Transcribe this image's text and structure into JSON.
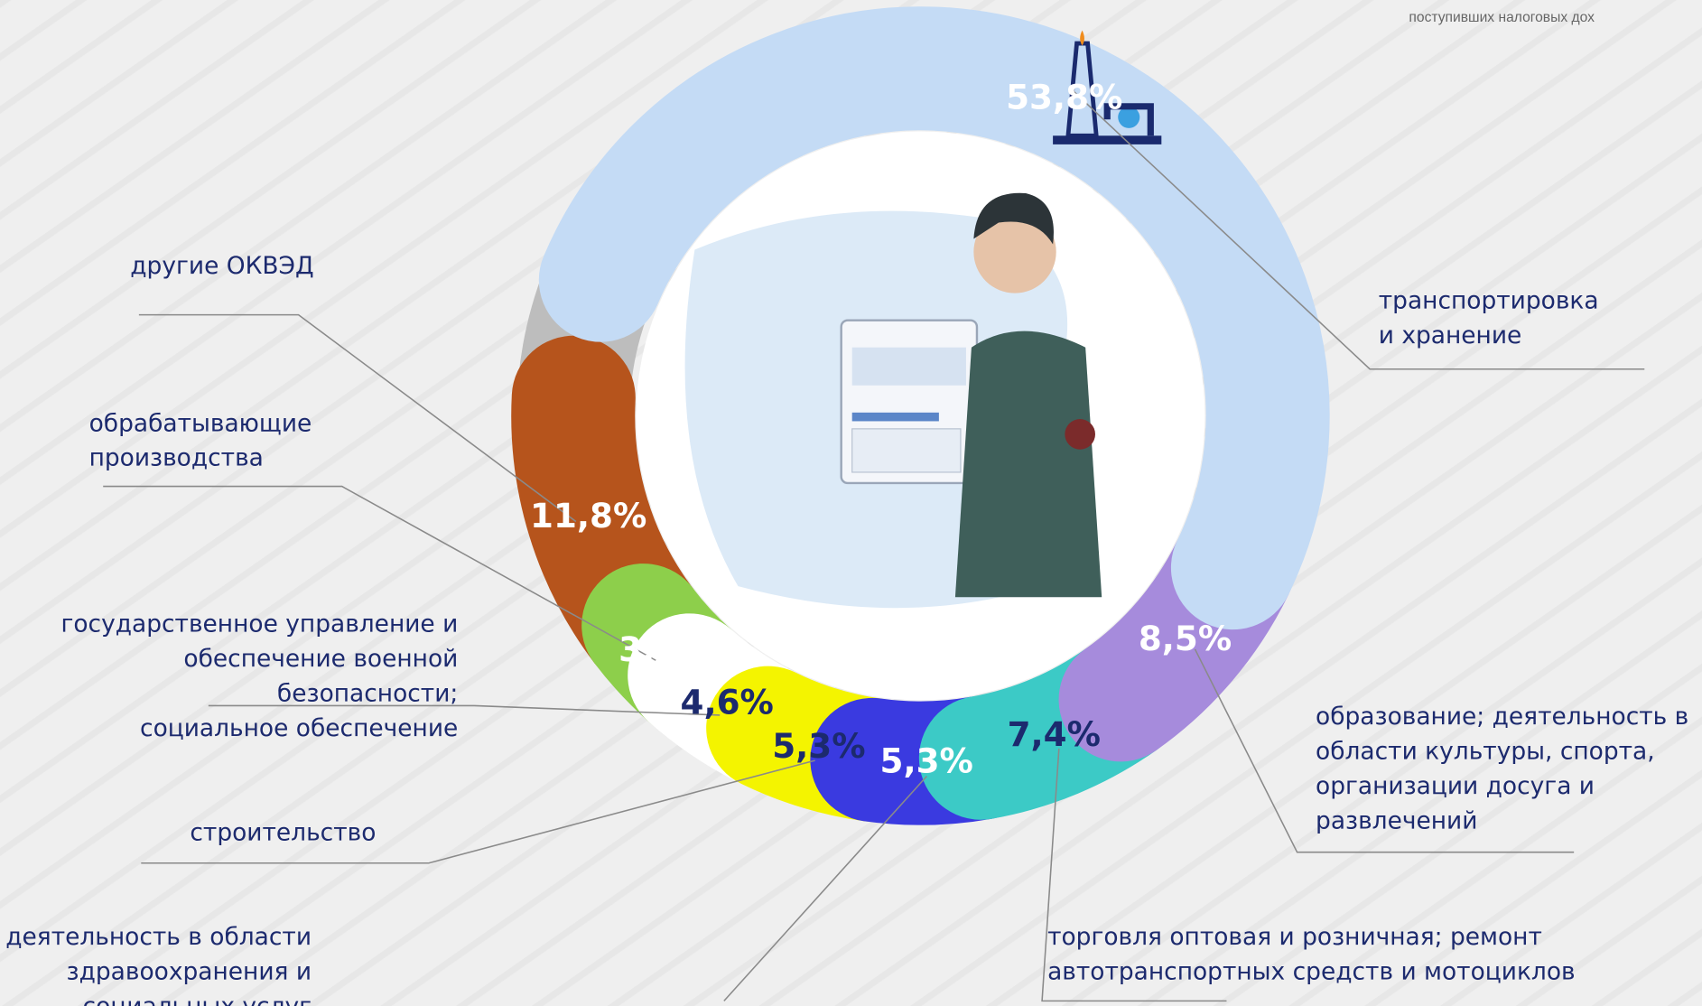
{
  "chart_data": {
    "type": "donut",
    "header_text": "поступивших налоговых дох",
    "categories": [
      "транспортировка\nи хранение",
      "образование; деятельность в\nобласти культуры, спорта,\nорганизации досуга и\nразвлечений",
      "торговля оптовая и розничная; ремонт\nавтотранспортных средств и мотоциклов",
      "деятельность в области\nздравоохранения и социальных услуг",
      "строительство",
      "государственное управление и\nобеспечение военной безопасности;\nсоциальное обеспечение",
      "обрабатывающие\nпроизводства",
      "другие ОКВЭД"
    ],
    "values": [
      53.8,
      8.5,
      7.4,
      5.3,
      5.3,
      4.6,
      3.3,
      11.8
    ],
    "value_labels": [
      "53,8%",
      "8,5%",
      "7,4%",
      "5,3%",
      "5,3%",
      "4,6%",
      "3,3%",
      "11,8%"
    ],
    "colors": [
      "#c4dbf5",
      "#a68bdc",
      "#3ccac6",
      "#3a3ae0",
      "#f4f400",
      "#ffffff",
      "#8dcf4b",
      "#b6541c"
    ],
    "label_colors": [
      "#ffffff",
      "#ffffff",
      "#1c2a6e",
      "#ffffff",
      "#1c2a6e",
      "#1c2a6e",
      "#ffffff",
      "#ffffff"
    ]
  }
}
